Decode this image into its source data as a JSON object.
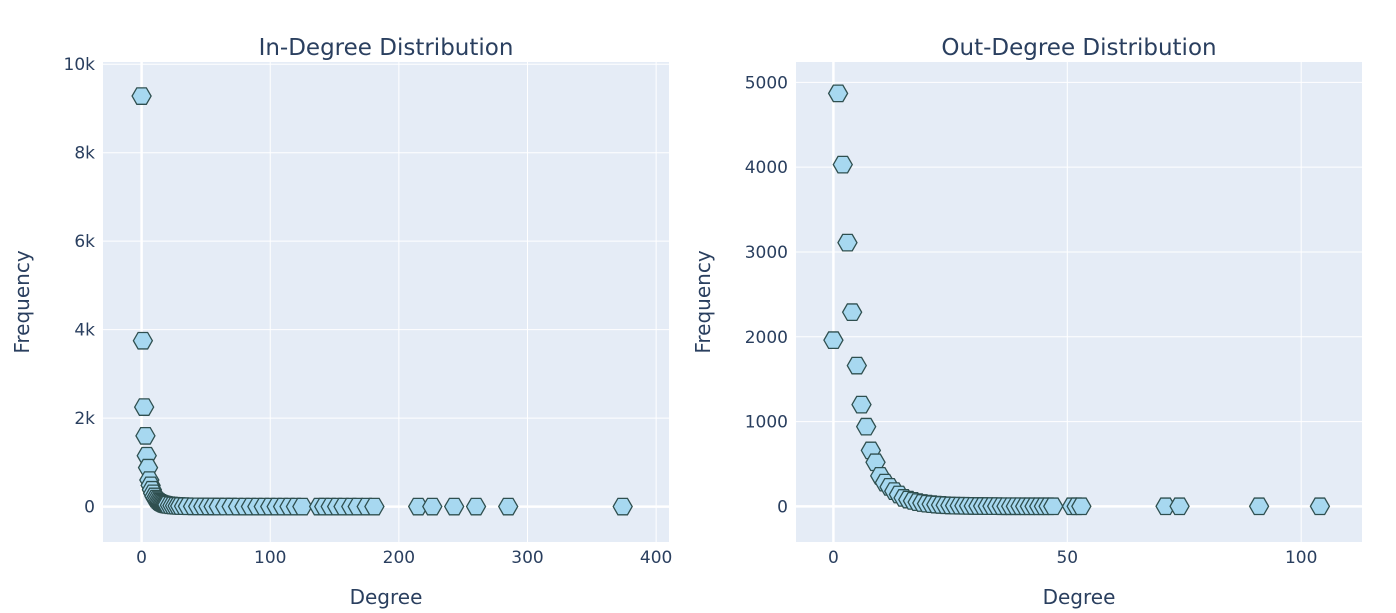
{
  "chart_data": [
    {
      "type": "scatter",
      "title": "In-Degree Distribution",
      "xlabel": "Degree",
      "ylabel": "Frequency",
      "xlim": [
        -30,
        410
      ],
      "ylim": [
        -800,
        10050
      ],
      "xticks": [
        0,
        100,
        200,
        300,
        400
      ],
      "xtick_labels": [
        "0",
        "100",
        "200",
        "300",
        "400"
      ],
      "yticks": [
        0,
        2000,
        4000,
        6000,
        8000,
        10000
      ],
      "ytick_labels": [
        "0",
        "2k",
        "4k",
        "6k",
        "8k",
        "10k"
      ],
      "grid": true,
      "marker": "hexagon",
      "marker_color": "#a7d8f0",
      "marker_edge": "#2f4f4f",
      "series": [
        {
          "x": [
            0,
            1,
            2,
            3,
            4,
            5,
            6,
            7,
            8,
            9,
            10,
            11,
            12,
            13,
            14,
            15,
            16,
            17,
            18,
            19,
            20,
            22,
            24,
            26,
            28,
            30,
            33,
            36,
            40,
            44,
            48,
            52,
            56,
            60,
            65,
            70,
            75,
            80,
            85,
            90,
            95,
            100,
            105,
            110,
            115,
            120,
            125,
            138,
            142,
            147,
            152,
            157,
            163,
            168,
            175,
            181,
            215,
            226,
            243,
            260,
            285,
            374
          ],
          "y": [
            9280,
            3750,
            2250,
            1600,
            1150,
            880,
            600,
            480,
            380,
            300,
            230,
            180,
            150,
            120,
            100,
            85,
            70,
            60,
            50,
            45,
            40,
            32,
            25,
            20,
            16,
            13,
            10,
            8,
            6,
            5,
            4,
            3,
            3,
            2,
            2,
            2,
            1,
            1,
            1,
            1,
            1,
            1,
            1,
            1,
            1,
            1,
            1,
            1,
            1,
            1,
            1,
            1,
            1,
            1,
            1,
            1,
            1,
            1,
            1,
            1,
            1,
            1
          ]
        }
      ]
    },
    {
      "type": "scatter",
      "title": "Out-Degree Distribution",
      "xlabel": "Degree",
      "ylabel": "Frequency",
      "xlim": [
        -8,
        113
      ],
      "ylim": [
        -420,
        5240
      ],
      "xticks": [
        0,
        50,
        100
      ],
      "xtick_labels": [
        "0",
        "50",
        "100"
      ],
      "yticks": [
        0,
        1000,
        2000,
        3000,
        4000,
        5000
      ],
      "ytick_labels": [
        "0",
        "1000",
        "2000",
        "3000",
        "4000",
        "5000"
      ],
      "grid": true,
      "marker": "hexagon",
      "marker_color": "#a7d8f0",
      "marker_edge": "#2f4f4f",
      "series": [
        {
          "x": [
            0,
            1,
            2,
            3,
            4,
            5,
            6,
            7,
            8,
            9,
            10,
            11,
            12,
            13,
            14,
            15,
            16,
            17,
            18,
            19,
            20,
            21,
            22,
            23,
            24,
            25,
            26,
            27,
            28,
            29,
            30,
            31,
            32,
            33,
            34,
            35,
            36,
            37,
            38,
            39,
            40,
            41,
            42,
            43,
            44,
            45,
            46,
            47,
            51,
            52,
            53,
            71,
            74,
            91,
            104
          ],
          "y": [
            1960,
            4870,
            4030,
            3110,
            2290,
            1660,
            1200,
            940,
            660,
            520,
            360,
            280,
            230,
            180,
            140,
            100,
            80,
            65,
            50,
            40,
            32,
            26,
            21,
            17,
            14,
            11,
            9,
            8,
            7,
            6,
            5,
            4,
            4,
            3,
            3,
            3,
            2,
            2,
            2,
            2,
            2,
            1,
            1,
            1,
            1,
            1,
            1,
            1,
            1,
            1,
            1,
            1,
            1,
            1,
            1
          ]
        }
      ]
    }
  ]
}
